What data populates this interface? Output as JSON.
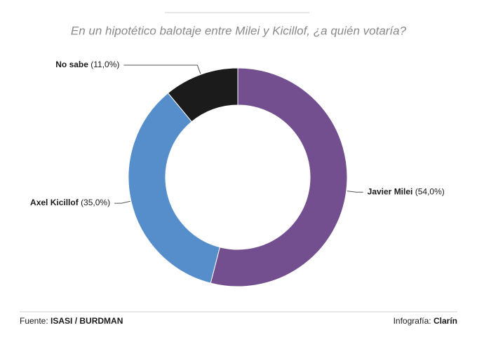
{
  "chart_data": {
    "type": "donut",
    "title": "En un hipotético balotaje entre Milei y Kicillof, ¿a quién votaría?",
    "categories": [
      "Javier Milei",
      "Axel Kicillof",
      "No sabe"
    ],
    "values": [
      54,
      35,
      11
    ],
    "value_labels": [
      "(54,0%)",
      "(35,0%)",
      "(11,0%)"
    ],
    "colors": [
      "#744f8f",
      "#568ecb",
      "#1b1b1b"
    ],
    "source_label": "Fuente:",
    "source": "ISASI / BURDMAN",
    "credit_label": "Infografía:",
    "credit": "Clarín"
  }
}
